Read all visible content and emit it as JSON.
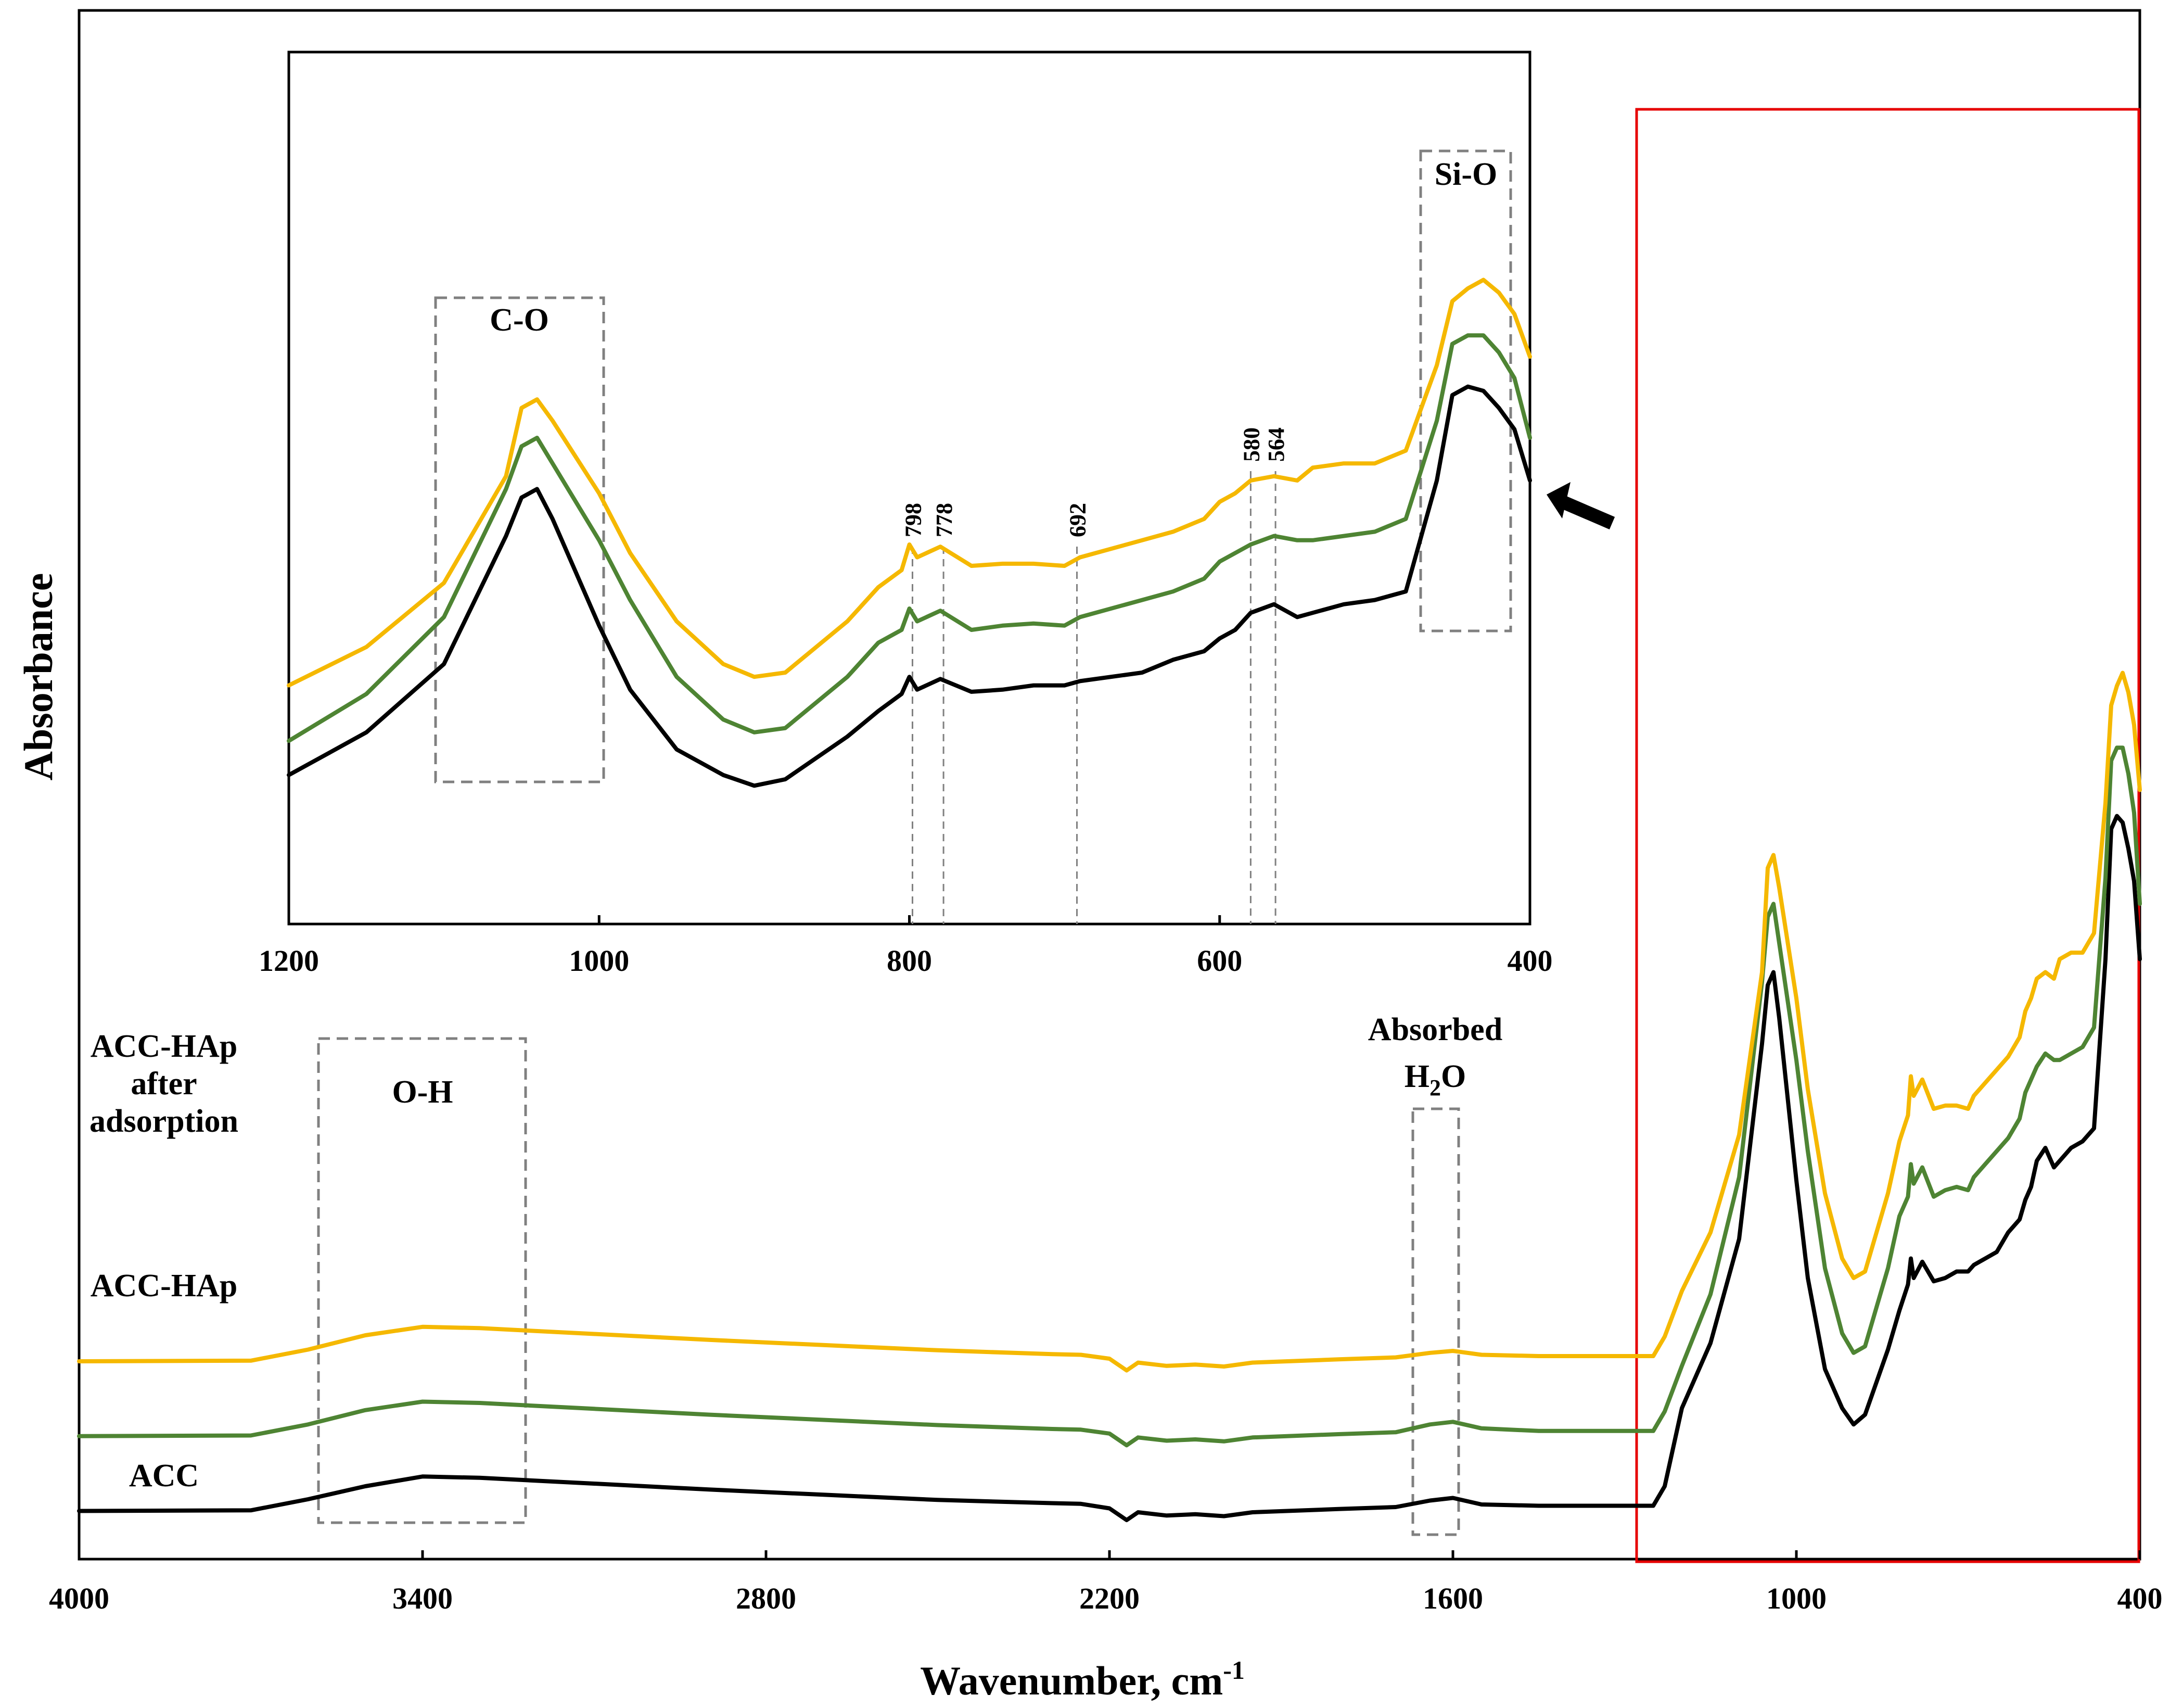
{
  "chart_data": {
    "type": "line",
    "main": {
      "xlabel": "Wavenumber,  cm",
      "xlabel_sup": "-1",
      "ylabel": "Absorbance",
      "xlim": [
        4000,
        400
      ],
      "xticks": [
        "4000",
        "3400",
        "2800",
        "2200",
        "1600",
        "1000",
        "400"
      ],
      "series": [
        {
          "name": "ACC-HAp after adsorption",
          "label_lines": [
            "ACC-HAp",
            "after",
            "adsorption"
          ],
          "color": "#F5B800",
          "offset": 2.3,
          "points": [
            [
              4000,
              0.02
            ],
            [
              3700,
              0.03
            ],
            [
              3600,
              0.2
            ],
            [
              3500,
              0.42
            ],
            [
              3400,
              0.55
            ],
            [
              3300,
              0.53
            ],
            [
              3100,
              0.44
            ],
            [
              2900,
              0.35
            ],
            [
              2700,
              0.27
            ],
            [
              2500,
              0.19
            ],
            [
              2300,
              0.13
            ],
            [
              2250,
              0.12
            ],
            [
              2200,
              0.06
            ],
            [
              2170,
              -0.12
            ],
            [
              2150,
              0.0
            ],
            [
              2100,
              -0.05
            ],
            [
              2050,
              -0.03
            ],
            [
              2000,
              -0.06
            ],
            [
              1950,
              0.0
            ],
            [
              1800,
              0.05
            ],
            [
              1700,
              0.08
            ],
            [
              1640,
              0.15
            ],
            [
              1600,
              0.18
            ],
            [
              1550,
              0.12
            ],
            [
              1450,
              0.1
            ],
            [
              1300,
              0.1
            ],
            [
              1250,
              0.1
            ],
            [
              1230,
              0.4
            ],
            [
              1200,
              1.1
            ],
            [
              1150,
              2.0
            ],
            [
              1100,
              3.5
            ],
            [
              1060,
              6.0
            ],
            [
              1050,
              7.6
            ],
            [
              1040,
              7.8
            ],
            [
              1030,
              7.3
            ],
            [
              1000,
              5.6
            ],
            [
              980,
              4.2
            ],
            [
              950,
              2.6
            ],
            [
              920,
              1.6
            ],
            [
              900,
              1.3
            ],
            [
              880,
              1.4
            ],
            [
              860,
              2.0
            ],
            [
              840,
              2.6
            ],
            [
              820,
              3.4
            ],
            [
              805,
              3.8
            ],
            [
              800,
              4.4
            ],
            [
              795,
              4.1
            ],
            [
              780,
              4.35
            ],
            [
              760,
              3.9
            ],
            [
              740,
              3.95
            ],
            [
              720,
              3.95
            ],
            [
              700,
              3.9
            ],
            [
              690,
              4.1
            ],
            [
              650,
              4.5
            ],
            [
              630,
              4.7
            ],
            [
              610,
              5.0
            ],
            [
              600,
              5.4
            ],
            [
              590,
              5.6
            ],
            [
              580,
              5.9
            ],
            [
              565,
              6.0
            ],
            [
              550,
              5.9
            ],
            [
              540,
              6.2
            ],
            [
              520,
              6.3
            ],
            [
              500,
              6.3
            ],
            [
              480,
              6.6
            ],
            [
              460,
              8.6
            ],
            [
              450,
              10.1
            ],
            [
              440,
              10.4
            ],
            [
              430,
              10.6
            ],
            [
              420,
              10.3
            ],
            [
              410,
              9.8
            ],
            [
              400,
              8.8
            ]
          ]
        },
        {
          "name": "ACC-HAp",
          "label_lines": [
            "ACC-HAp"
          ],
          "color": "#4E8433",
          "offset": 1.15,
          "points": [
            [
              4000,
              0.02
            ],
            [
              3700,
              0.03
            ],
            [
              3600,
              0.2
            ],
            [
              3500,
              0.42
            ],
            [
              3400,
              0.55
            ],
            [
              3300,
              0.53
            ],
            [
              3100,
              0.44
            ],
            [
              2900,
              0.35
            ],
            [
              2700,
              0.27
            ],
            [
              2500,
              0.19
            ],
            [
              2300,
              0.13
            ],
            [
              2250,
              0.12
            ],
            [
              2200,
              0.06
            ],
            [
              2170,
              -0.12
            ],
            [
              2150,
              0.0
            ],
            [
              2100,
              -0.05
            ],
            [
              2050,
              -0.03
            ],
            [
              2000,
              -0.06
            ],
            [
              1950,
              0.0
            ],
            [
              1800,
              0.05
            ],
            [
              1700,
              0.08
            ],
            [
              1640,
              0.2
            ],
            [
              1600,
              0.24
            ],
            [
              1550,
              0.14
            ],
            [
              1450,
              0.1
            ],
            [
              1300,
              0.1
            ],
            [
              1250,
              0.1
            ],
            [
              1230,
              0.4
            ],
            [
              1200,
              1.1
            ],
            [
              1150,
              2.2
            ],
            [
              1100,
              4.0
            ],
            [
              1060,
              7.0
            ],
            [
              1050,
              8.0
            ],
            [
              1040,
              8.2
            ],
            [
              1030,
              7.6
            ],
            [
              1000,
              5.8
            ],
            [
              980,
              4.4
            ],
            [
              950,
              2.6
            ],
            [
              920,
              1.6
            ],
            [
              900,
              1.3
            ],
            [
              880,
              1.4
            ],
            [
              860,
              2.0
            ],
            [
              840,
              2.6
            ],
            [
              820,
              3.4
            ],
            [
              805,
              3.7
            ],
            [
              800,
              4.2
            ],
            [
              795,
              3.9
            ],
            [
              780,
              4.15
            ],
            [
              760,
              3.7
            ],
            [
              740,
              3.8
            ],
            [
              720,
              3.85
            ],
            [
              700,
              3.8
            ],
            [
              690,
              4.0
            ],
            [
              650,
              4.4
            ],
            [
              630,
              4.6
            ],
            [
              610,
              4.9
            ],
            [
              600,
              5.3
            ],
            [
              590,
              5.5
            ],
            [
              580,
              5.7
            ],
            [
              565,
              5.9
            ],
            [
              550,
              5.8
            ],
            [
              540,
              5.8
            ],
            [
              520,
              5.9
            ],
            [
              500,
              6.0
            ],
            [
              480,
              6.3
            ],
            [
              460,
              8.6
            ],
            [
              450,
              10.4
            ],
            [
              440,
              10.6
            ],
            [
              430,
              10.6
            ],
            [
              420,
              10.2
            ],
            [
              410,
              9.6
            ],
            [
              400,
              8.2
            ]
          ]
        },
        {
          "name": "ACC",
          "label_lines": [
            "ACC"
          ],
          "color": "#000000",
          "offset": 0.0,
          "points": [
            [
              4000,
              0.02
            ],
            [
              3700,
              0.03
            ],
            [
              3600,
              0.2
            ],
            [
              3500,
              0.4
            ],
            [
              3400,
              0.55
            ],
            [
              3300,
              0.53
            ],
            [
              3100,
              0.44
            ],
            [
              2900,
              0.35
            ],
            [
              2700,
              0.27
            ],
            [
              2500,
              0.19
            ],
            [
              2300,
              0.14
            ],
            [
              2250,
              0.13
            ],
            [
              2200,
              0.06
            ],
            [
              2170,
              -0.12
            ],
            [
              2150,
              0.0
            ],
            [
              2100,
              -0.05
            ],
            [
              2050,
              -0.03
            ],
            [
              2000,
              -0.06
            ],
            [
              1950,
              0.0
            ],
            [
              1800,
              0.05
            ],
            [
              1700,
              0.08
            ],
            [
              1640,
              0.18
            ],
            [
              1600,
              0.22
            ],
            [
              1550,
              0.12
            ],
            [
              1450,
              0.1
            ],
            [
              1300,
              0.1
            ],
            [
              1250,
              0.1
            ],
            [
              1230,
              0.4
            ],
            [
              1200,
              1.6
            ],
            [
              1150,
              2.6
            ],
            [
              1100,
              4.2
            ],
            [
              1060,
              7.2
            ],
            [
              1050,
              8.1
            ],
            [
              1040,
              8.3
            ],
            [
              1030,
              7.6
            ],
            [
              1000,
              5.1
            ],
            [
              980,
              3.6
            ],
            [
              950,
              2.2
            ],
            [
              920,
              1.6
            ],
            [
              900,
              1.35
            ],
            [
              880,
              1.5
            ],
            [
              860,
              2.0
            ],
            [
              840,
              2.5
            ],
            [
              820,
              3.1
            ],
            [
              805,
              3.5
            ],
            [
              800,
              3.9
            ],
            [
              795,
              3.6
            ],
            [
              780,
              3.85
            ],
            [
              760,
              3.55
            ],
            [
              740,
              3.6
            ],
            [
              720,
              3.7
            ],
            [
              700,
              3.7
            ],
            [
              690,
              3.8
            ],
            [
              650,
              4.0
            ],
            [
              630,
              4.3
            ],
            [
              610,
              4.5
            ],
            [
              600,
              4.8
            ],
            [
              590,
              5.0
            ],
            [
              580,
              5.4
            ],
            [
              565,
              5.6
            ],
            [
              550,
              5.3
            ],
            [
              540,
              5.4
            ],
            [
              520,
              5.6
            ],
            [
              500,
              5.7
            ],
            [
              480,
              5.9
            ],
            [
              460,
              8.5
            ],
            [
              450,
              10.5
            ],
            [
              440,
              10.7
            ],
            [
              430,
              10.6
            ],
            [
              420,
              10.2
            ],
            [
              410,
              9.7
            ],
            [
              400,
              8.5
            ]
          ]
        }
      ],
      "annotations": {
        "oh": "O-H",
        "h2o_line1": "Absorbed",
        "h2o_line2_main": "H",
        "h2o_line2_sub": "2",
        "h2o_line2_end": "O"
      }
    },
    "inset": {
      "xlim": [
        1200,
        400
      ],
      "xticks": [
        "1200",
        "1000",
        "800",
        "600",
        "400"
      ],
      "annotations": {
        "co": "C-O",
        "sio": "Si-O"
      },
      "peak_labels": [
        "798",
        "778",
        "692",
        "580",
        "564"
      ],
      "peak_positions": [
        798,
        778,
        692,
        580,
        564
      ],
      "series_order": [
        "ACC-HAp after adsorption",
        "ACC-HAp",
        "ACC"
      ],
      "inset_offsets": [
        2.6,
        1.3,
        0.0
      ]
    }
  }
}
